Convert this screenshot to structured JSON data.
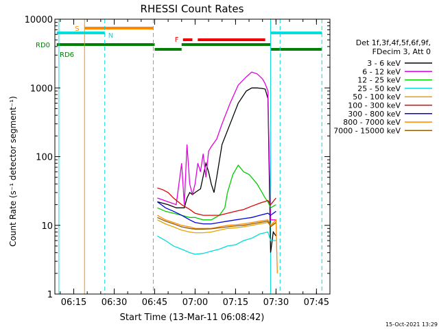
{
  "chart_data": {
    "type": "line",
    "title": "RHESSI Count Rates",
    "xlabel": "Start Time (13-Mar-11 06:08:42)",
    "ylabel": "Count Rate (s⁻¹ detector segment⁻¹)",
    "x_units": "hh:mm",
    "x_range": [
      "06:08:42",
      "07:50:00"
    ],
    "y_scale": "log",
    "ylim": [
      1,
      10000
    ],
    "x_ticks": [
      "06:15",
      "06:30",
      "06:45",
      "07:00",
      "07:15",
      "07:30",
      "07:45"
    ],
    "y_ticks": [
      "1",
      "10",
      "100",
      "1000",
      "10000"
    ],
    "timestamp": "15-Oct-2021 13:29",
    "legend": {
      "header": [
        "Det 1f,3f,4f,5f,6f,9f,",
        "FDecim 3, Att 0"
      ],
      "placement": "right",
      "entries": [
        {
          "label": "3 - 6 keV",
          "color": "#000000"
        },
        {
          "label": "6 - 12 keV",
          "color": "#e000e0"
        },
        {
          "label": "12 - 25 keV",
          "color": "#00cc00"
        },
        {
          "label": "25 - 50 keV",
          "color": "#00dddd"
        },
        {
          "label": "50 - 100 keV",
          "color": "#e8a000"
        },
        {
          "label": "100 - 300 keV",
          "color": "#e00000"
        },
        {
          "label": "300 - 800 keV",
          "color": "#0000e0"
        },
        {
          "label": "800 - 7000 keV",
          "color": "#ff8800"
        },
        {
          "label": "7000 - 15000 keV",
          "color": "#8b5a00"
        }
      ]
    },
    "series": [
      {
        "name": "3 - 6 keV",
        "color": "#000000",
        "points": [
          [
            "06:46",
            22
          ],
          [
            "06:50",
            20
          ],
          [
            "06:53",
            18
          ],
          [
            "06:56",
            18
          ],
          [
            "06:57",
            25
          ],
          [
            "06:58",
            30
          ],
          [
            "06:59",
            28
          ],
          [
            "07:00",
            30
          ],
          [
            "07:02",
            34
          ],
          [
            "07:04",
            80
          ],
          [
            "07:05",
            60
          ],
          [
            "07:06",
            40
          ],
          [
            "07:07",
            30
          ],
          [
            "07:08",
            50
          ],
          [
            "07:10",
            150
          ],
          [
            "07:13",
            300
          ],
          [
            "07:16",
            600
          ],
          [
            "07:19",
            900
          ],
          [
            "07:21",
            1000
          ],
          [
            "07:23",
            1000
          ],
          [
            "07:25",
            980
          ],
          [
            "07:26",
            960
          ],
          [
            "07:27",
            700
          ],
          [
            "07:28",
            4
          ],
          [
            "07:29",
            8
          ],
          [
            "07:30",
            7
          ]
        ]
      },
      {
        "name": "6 - 12 keV",
        "color": "#e000e0",
        "points": [
          [
            "06:46",
            25
          ],
          [
            "06:50",
            22
          ],
          [
            "06:53",
            20
          ],
          [
            "06:55",
            80
          ],
          [
            "06:56",
            20
          ],
          [
            "06:57",
            150
          ],
          [
            "06:58",
            40
          ],
          [
            "06:59",
            28
          ],
          [
            "07:00",
            40
          ],
          [
            "07:01",
            80
          ],
          [
            "07:02",
            60
          ],
          [
            "07:03",
            110
          ],
          [
            "07:04",
            50
          ],
          [
            "07:05",
            120
          ],
          [
            "07:06",
            140
          ],
          [
            "07:08",
            180
          ],
          [
            "07:10",
            300
          ],
          [
            "07:13",
            600
          ],
          [
            "07:16",
            1100
          ],
          [
            "07:19",
            1450
          ],
          [
            "07:21",
            1700
          ],
          [
            "07:23",
            1600
          ],
          [
            "07:25",
            1350
          ],
          [
            "07:26",
            1150
          ],
          [
            "07:27",
            900
          ],
          [
            "07:28",
            12
          ],
          [
            "07:30",
            12
          ]
        ]
      },
      {
        "name": "12 - 25 keV",
        "color": "#00cc00",
        "points": [
          [
            "06:46",
            18
          ],
          [
            "06:49",
            16
          ],
          [
            "06:52",
            15
          ],
          [
            "06:55",
            14
          ],
          [
            "06:58",
            13
          ],
          [
            "07:00",
            13
          ],
          [
            "07:03",
            12
          ],
          [
            "07:06",
            12
          ],
          [
            "07:09",
            14
          ],
          [
            "07:11",
            18
          ],
          [
            "07:12",
            30
          ],
          [
            "07:14",
            55
          ],
          [
            "07:16",
            75
          ],
          [
            "07:18",
            60
          ],
          [
            "07:20",
            55
          ],
          [
            "07:23",
            40
          ],
          [
            "07:26",
            25
          ],
          [
            "07:27",
            22
          ],
          [
            "07:28",
            18
          ],
          [
            "07:30",
            20
          ]
        ]
      },
      {
        "name": "25 - 50 keV",
        "color": "#00dddd",
        "points": [
          [
            "06:46",
            7
          ],
          [
            "06:49",
            6
          ],
          [
            "06:52",
            5
          ],
          [
            "06:55",
            4.5
          ],
          [
            "06:58",
            4
          ],
          [
            "07:00",
            3.8
          ],
          [
            "07:03",
            3.9
          ],
          [
            "07:06",
            4.2
          ],
          [
            "07:09",
            4.5
          ],
          [
            "07:12",
            5
          ],
          [
            "07:15",
            5.2
          ],
          [
            "07:18",
            6
          ],
          [
            "07:21",
            6.5
          ],
          [
            "07:24",
            7.5
          ],
          [
            "07:27",
            8
          ],
          [
            "07:28",
            6
          ],
          [
            "07:30",
            6
          ]
        ]
      },
      {
        "name": "50 - 100 keV",
        "color": "#e8a000",
        "points": [
          [
            "06:46",
            12
          ],
          [
            "06:49",
            10.5
          ],
          [
            "06:52",
            9.5
          ],
          [
            "06:55",
            8.5
          ],
          [
            "06:58",
            8
          ],
          [
            "07:00",
            7.8
          ],
          [
            "07:03",
            7.8
          ],
          [
            "07:06",
            8
          ],
          [
            "07:09",
            8.5
          ],
          [
            "07:12",
            9
          ],
          [
            "07:15",
            9.2
          ],
          [
            "07:18",
            9.5
          ],
          [
            "07:21",
            10
          ],
          [
            "07:24",
            10.5
          ],
          [
            "07:27",
            11
          ],
          [
            "07:28",
            10
          ],
          [
            "07:30",
            11
          ]
        ]
      },
      {
        "name": "100 - 300 keV",
        "color": "#e00000",
        "points": [
          [
            "06:46",
            35
          ],
          [
            "06:48",
            33
          ],
          [
            "06:50",
            30
          ],
          [
            "06:52",
            25
          ],
          [
            "06:55",
            20
          ],
          [
            "06:58",
            17
          ],
          [
            "07:00",
            15
          ],
          [
            "07:03",
            14
          ],
          [
            "07:06",
            14
          ],
          [
            "07:09",
            14
          ],
          [
            "07:12",
            15
          ],
          [
            "07:15",
            16
          ],
          [
            "07:18",
            17
          ],
          [
            "07:21",
            19
          ],
          [
            "07:24",
            21
          ],
          [
            "07:27",
            23
          ],
          [
            "07:28",
            20
          ],
          [
            "07:30",
            25
          ]
        ]
      },
      {
        "name": "300 - 800 keV",
        "color": "#0000e0",
        "points": [
          [
            "06:46",
            22
          ],
          [
            "06:49",
            18
          ],
          [
            "06:52",
            16
          ],
          [
            "06:55",
            14
          ],
          [
            "06:58",
            12
          ],
          [
            "07:00",
            11
          ],
          [
            "07:03",
            10.5
          ],
          [
            "07:06",
            10.5
          ],
          [
            "07:09",
            11
          ],
          [
            "07:12",
            11.5
          ],
          [
            "07:15",
            12
          ],
          [
            "07:18",
            12.5
          ],
          [
            "07:21",
            13
          ],
          [
            "07:24",
            14
          ],
          [
            "07:27",
            15
          ],
          [
            "07:28",
            14
          ],
          [
            "07:30",
            16
          ]
        ]
      },
      {
        "name": "800 - 7000 keV",
        "color": "#ff8800",
        "points": [
          [
            "06:46",
            14
          ],
          [
            "06:49",
            12
          ],
          [
            "06:52",
            11
          ],
          [
            "06:55",
            10
          ],
          [
            "06:58",
            9.5
          ],
          [
            "07:00",
            9
          ],
          [
            "07:03",
            9
          ],
          [
            "07:06",
            9
          ],
          [
            "07:09",
            9.5
          ],
          [
            "07:12",
            10
          ],
          [
            "07:15",
            10.2
          ],
          [
            "07:18",
            10.5
          ],
          [
            "07:21",
            11
          ],
          [
            "07:24",
            11.5
          ],
          [
            "07:27",
            12
          ],
          [
            "07:28",
            10
          ],
          [
            "07:30",
            12
          ],
          [
            "07:30.5",
            2
          ]
        ]
      },
      {
        "name": "7000 - 15000 keV",
        "color": "#8b5a00",
        "points": [
          [
            "06:46",
            13
          ],
          [
            "06:49",
            11.5
          ],
          [
            "06:52",
            10.5
          ],
          [
            "06:55",
            9.5
          ],
          [
            "06:58",
            9
          ],
          [
            "07:00",
            8.8
          ],
          [
            "07:03",
            8.8
          ],
          [
            "07:06",
            8.9
          ],
          [
            "07:09",
            9.2
          ],
          [
            "07:12",
            9.5
          ],
          [
            "07:15",
            9.8
          ],
          [
            "07:18",
            10
          ],
          [
            "07:21",
            10.5
          ],
          [
            "07:24",
            11
          ],
          [
            "07:27",
            11.5
          ],
          [
            "07:28",
            9.5
          ],
          [
            "07:30",
            11
          ]
        ]
      }
    ],
    "vertical_markers": [
      {
        "time": "06:09.5",
        "color": "#00dddd",
        "style": "solid"
      },
      {
        "time": "06:19",
        "color": "#ff8800",
        "style": "solid"
      },
      {
        "time": "06:26.5",
        "color": "#00dddd",
        "style": "dashed"
      },
      {
        "time": "06:44.5",
        "color": "#ff8800",
        "style": "dashed"
      },
      {
        "time": "07:28",
        "color": "#00dddd",
        "style": "solid"
      },
      {
        "time": "07:31.5",
        "color": "#00dddd",
        "style": "dashed"
      },
      {
        "time": "07:47",
        "color": "#00dddd",
        "style": "dashed"
      }
    ],
    "flag_bars": [
      {
        "label": "S",
        "color": "#ff8800",
        "segments": [
          [
            "06:19",
            "06:44.5"
          ]
        ]
      },
      {
        "label": "N",
        "color": "#00dddd",
        "segments": [
          [
            "06:08.7",
            "06:26.5"
          ],
          [
            "07:28",
            "07:47"
          ]
        ]
      },
      {
        "label": "RD0",
        "color": "#008000",
        "segments": [
          [
            "06:08.7",
            "06:45"
          ],
          [
            "06:55",
            "07:28"
          ]
        ]
      },
      {
        "label": "RD6",
        "color": "#008000",
        "segments": [
          [
            "06:45",
            "06:55"
          ],
          [
            "07:28",
            "07:47"
          ]
        ]
      },
      {
        "label": "F",
        "color": "#ee0000",
        "segments": [
          [
            "06:55.5",
            "06:59"
          ],
          [
            "07:01",
            "07:26"
          ]
        ]
      }
    ]
  }
}
